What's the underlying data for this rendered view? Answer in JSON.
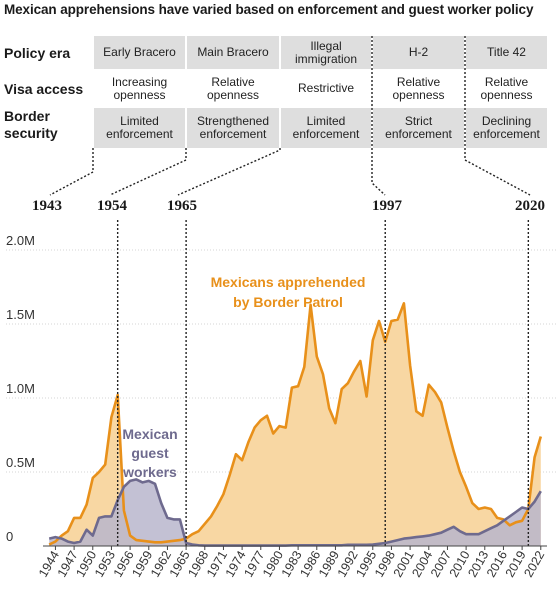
{
  "title": "Mexican apprehensions have varied based on enforcement and guest worker policy",
  "row_labels": [
    "Policy era",
    "Visa access",
    "Border\nsecurity"
  ],
  "eras": [
    {
      "name": "Early Bracero",
      "visa": "Increasing\nopenness",
      "security": "Limited\nenforcement"
    },
    {
      "name": "Main Bracero",
      "visa": "Relative\nopenness",
      "security": "Strengthened\nenforcement"
    },
    {
      "name": "Illegal\nimmigration",
      "visa": "Restrictive",
      "security": "Limited\nenforcement"
    },
    {
      "name": "H-2",
      "visa": "Relative\nopenness",
      "security": "Strict\nenforcement"
    },
    {
      "name": "Title 42",
      "visa": "Relative\nopenness",
      "security": "Declining\nenforcement"
    }
  ],
  "era_boundary_years": [
    "1943",
    "1954",
    "1965",
    "1997",
    "2020"
  ],
  "colors": {
    "apprehended": "#e8901a",
    "apprehended_fill": "#f8d7a3",
    "guest": "#6e6a8e",
    "guest_fill": "#b9b6cc",
    "shade": "#dedede"
  },
  "chart_data": {
    "type": "area",
    "ylim": [
      0,
      2000000
    ],
    "y_ticks": [
      0,
      500000,
      1000000,
      1500000,
      2000000
    ],
    "y_tick_labels": [
      "0",
      "0.5M",
      "1.0M",
      "1.5M",
      "2.0M"
    ],
    "x_ticks": [
      1944,
      1947,
      1950,
      1953,
      1956,
      1959,
      1962,
      1965,
      1968,
      1971,
      1974,
      1977,
      1980,
      1983,
      1986,
      1989,
      1992,
      1995,
      1998,
      2001,
      2004,
      2007,
      2010,
      2013,
      2016,
      2019,
      2022
    ],
    "xlim": [
      1942,
      2023
    ],
    "series": [
      {
        "name": "Mexicans apprehended\nby Border Patrol",
        "years": [
          1943,
          1944,
          1945,
          1946,
          1947,
          1948,
          1949,
          1950,
          1951,
          1952,
          1953,
          1954,
          1955,
          1956,
          1957,
          1958,
          1959,
          1960,
          1961,
          1962,
          1963,
          1964,
          1965,
          1966,
          1967,
          1968,
          1969,
          1970,
          1971,
          1972,
          1973,
          1974,
          1975,
          1976,
          1977,
          1978,
          1979,
          1980,
          1981,
          1982,
          1983,
          1984,
          1985,
          1986,
          1987,
          1988,
          1989,
          1990,
          1991,
          1992,
          1993,
          1994,
          1995,
          1996,
          1997,
          1998,
          1999,
          2000,
          2001,
          2002,
          2003,
          2004,
          2005,
          2006,
          2007,
          2008,
          2009,
          2010,
          2011,
          2012,
          2013,
          2014,
          2015,
          2016,
          2017,
          2018,
          2019,
          2020,
          2021,
          2022
        ],
        "values": [
          10000,
          30000,
          70000,
          100000,
          190000,
          190000,
          280000,
          460000,
          500000,
          550000,
          870000,
          1020000,
          240000,
          70000,
          40000,
          35000,
          30000,
          25000,
          25000,
          30000,
          35000,
          40000,
          50000,
          80000,
          100000,
          150000,
          200000,
          270000,
          350000,
          480000,
          620000,
          580000,
          700000,
          800000,
          850000,
          880000,
          760000,
          810000,
          800000,
          1070000,
          1080000,
          1210000,
          1630000,
          1280000,
          1160000,
          930000,
          830000,
          1060000,
          1100000,
          1180000,
          1250000,
          1010000,
          1390000,
          1520000,
          1380000,
          1520000,
          1530000,
          1640000,
          1220000,
          910000,
          880000,
          1090000,
          1040000,
          970000,
          800000,
          640000,
          500000,
          400000,
          290000,
          250000,
          260000,
          250000,
          190000,
          180000,
          140000,
          160000,
          170000,
          250000,
          600000,
          740000
        ]
      },
      {
        "name": "Mexican\nguest\nworkers",
        "years": [
          1943,
          1944,
          1945,
          1946,
          1947,
          1948,
          1949,
          1950,
          1951,
          1952,
          1953,
          1954,
          1955,
          1956,
          1957,
          1958,
          1959,
          1960,
          1961,
          1962,
          1963,
          1964,
          1965,
          1966,
          1967,
          1968,
          1969,
          1970,
          1971,
          1972,
          1973,
          1974,
          1975,
          1976,
          1977,
          1978,
          1979,
          1980,
          1981,
          1982,
          1983,
          1984,
          1985,
          1986,
          1987,
          1988,
          1989,
          1990,
          1991,
          1992,
          1993,
          1994,
          1995,
          1996,
          1997,
          1998,
          1999,
          2000,
          2001,
          2002,
          2003,
          2004,
          2005,
          2006,
          2007,
          2008,
          2009,
          2010,
          2011,
          2012,
          2013,
          2014,
          2015,
          2016,
          2017,
          2018,
          2019,
          2020,
          2021,
          2022
        ],
        "values": [
          50000,
          60000,
          50000,
          30000,
          20000,
          30000,
          110000,
          70000,
          190000,
          200000,
          200000,
          310000,
          400000,
          440000,
          450000,
          430000,
          440000,
          420000,
          290000,
          190000,
          180000,
          180000,
          20000,
          10000,
          5000,
          3000,
          3000,
          3000,
          3000,
          3000,
          3000,
          3000,
          3000,
          3000,
          3000,
          3000,
          3000,
          3000,
          3000,
          5000,
          5000,
          5000,
          5000,
          5000,
          5000,
          5000,
          5000,
          5000,
          8000,
          8000,
          8000,
          8000,
          10000,
          15000,
          20000,
          30000,
          40000,
          50000,
          55000,
          60000,
          65000,
          70000,
          80000,
          90000,
          110000,
          130000,
          100000,
          80000,
          80000,
          80000,
          100000,
          120000,
          140000,
          170000,
          200000,
          230000,
          260000,
          250000,
          300000,
          370000
        ]
      }
    ]
  }
}
